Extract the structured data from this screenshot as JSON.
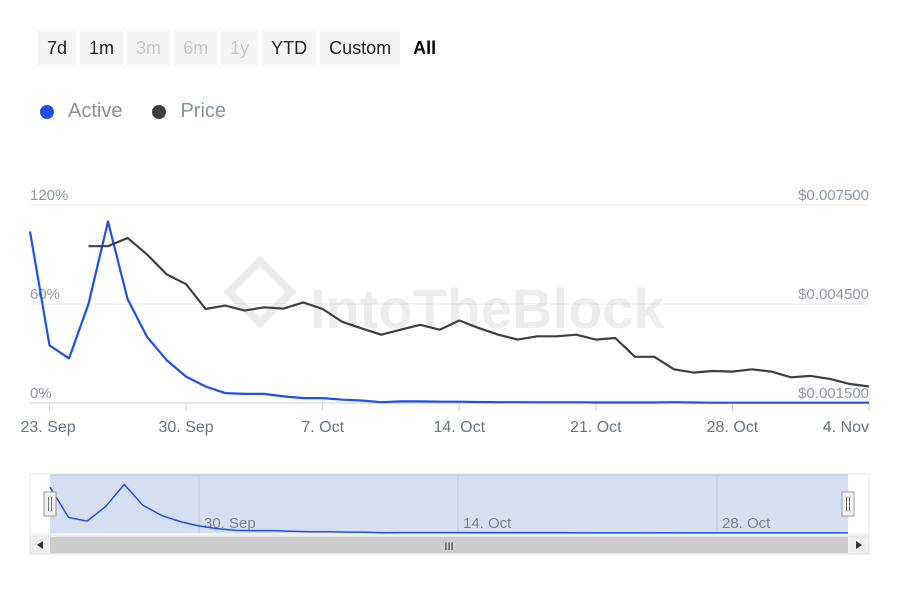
{
  "range_selector": {
    "buttons": [
      {
        "label": "7d",
        "state": "enabled"
      },
      {
        "label": "1m",
        "state": "enabled"
      },
      {
        "label": "3m",
        "state": "disabled"
      },
      {
        "label": "6m",
        "state": "disabled"
      },
      {
        "label": "1y",
        "state": "disabled"
      },
      {
        "label": "YTD",
        "state": "enabled"
      },
      {
        "label": "Custom",
        "state": "enabled"
      },
      {
        "label": "All",
        "state": "selected"
      }
    ]
  },
  "legend": {
    "items": [
      {
        "label": "Active",
        "color": "#1e4ff0"
      },
      {
        "label": "Price",
        "color": "#3d4043"
      }
    ]
  },
  "watermark": "IntoTheBlock",
  "navigator": {
    "labels": [
      "30. Sep",
      "14. Oct",
      "28. Oct"
    ],
    "scrollbar_grip": "III"
  },
  "chart_data": {
    "type": "line",
    "x_start": "2023-09-22",
    "x_end": "2023-11-04",
    "x_tick_labels": [
      {
        "label": "23. Sep",
        "date": "2023-09-23"
      },
      {
        "label": "30. Sep",
        "date": "2023-09-30"
      },
      {
        "label": "7. Oct",
        "date": "2023-10-07"
      },
      {
        "label": "14. Oct",
        "date": "2023-10-14"
      },
      {
        "label": "21. Oct",
        "date": "2023-10-21"
      },
      {
        "label": "28. Oct",
        "date": "2023-10-28"
      },
      {
        "label": "4. Nov",
        "date": "2023-11-04"
      }
    ],
    "y_left": {
      "ticks": [
        "0%",
        "60%",
        "120%"
      ],
      "ylim": [
        0,
        120
      ]
    },
    "y_right": {
      "ticks": [
        "$0.001500",
        "$0.004500",
        "$0.007500"
      ],
      "ylim": [
        0.0015,
        0.0075
      ]
    },
    "grid": true,
    "legend_position": "top-left",
    "series": [
      {
        "name": "Active",
        "axis": "left",
        "color": "#1e4ff0",
        "x": [
          "2023-09-22",
          "2023-09-23",
          "2023-09-24",
          "2023-09-25",
          "2023-09-26",
          "2023-09-27",
          "2023-09-28",
          "2023-09-29",
          "2023-09-30",
          "2023-10-01",
          "2023-10-02",
          "2023-10-03",
          "2023-10-04",
          "2023-10-05",
          "2023-10-06",
          "2023-10-07",
          "2023-10-08",
          "2023-10-09",
          "2023-10-10",
          "2023-10-11",
          "2023-10-12",
          "2023-10-13",
          "2023-10-14",
          "2023-10-15",
          "2023-10-16",
          "2023-10-17",
          "2023-10-18",
          "2023-10-19",
          "2023-10-20",
          "2023-10-21",
          "2023-10-22",
          "2023-10-23",
          "2023-10-24",
          "2023-10-25",
          "2023-10-26",
          "2023-10-27",
          "2023-10-28",
          "2023-10-29",
          "2023-10-30",
          "2023-10-31",
          "2023-11-01",
          "2023-11-02",
          "2023-11-03",
          "2023-11-04"
        ],
        "values": [
          104,
          35,
          27,
          60,
          110,
          63,
          40,
          26,
          16,
          10,
          6,
          5.5,
          5.5,
          4,
          3,
          3,
          2,
          1.5,
          0.5,
          1,
          1,
          0.8,
          0.8,
          0.6,
          0.5,
          0.5,
          0.4,
          0.4,
          0.4,
          0.3,
          0.3,
          0.3,
          0.3,
          0.5,
          0.3,
          0.2,
          0.2,
          0.2,
          0.2,
          0.2,
          0.2,
          0.2,
          0.2,
          0.2
        ]
      },
      {
        "name": "Price",
        "axis": "right",
        "color": "#3d4043",
        "x": [
          "2023-09-25",
          "2023-09-26",
          "2023-09-27",
          "2023-09-28",
          "2023-09-29",
          "2023-09-30",
          "2023-10-01",
          "2023-10-02",
          "2023-10-03",
          "2023-10-04",
          "2023-10-05",
          "2023-10-06",
          "2023-10-07",
          "2023-10-08",
          "2023-10-09",
          "2023-10-10",
          "2023-10-11",
          "2023-10-12",
          "2023-10-13",
          "2023-10-14",
          "2023-10-15",
          "2023-10-16",
          "2023-10-17",
          "2023-10-18",
          "2023-10-19",
          "2023-10-20",
          "2023-10-21",
          "2023-10-22",
          "2023-10-23",
          "2023-10-24",
          "2023-10-25",
          "2023-10-26",
          "2023-10-27",
          "2023-10-28",
          "2023-10-29",
          "2023-10-30",
          "2023-10-31",
          "2023-11-01",
          "2023-11-02",
          "2023-11-03",
          "2023-11-04"
        ],
        "values": [
          0.00625,
          0.00625,
          0.0065,
          0.006,
          0.0054,
          0.0051,
          0.00435,
          0.00445,
          0.0043,
          0.0044,
          0.00436,
          0.00455,
          0.00435,
          0.00396,
          0.00376,
          0.00357,
          0.00372,
          0.00387,
          0.00372,
          0.004,
          0.00377,
          0.00357,
          0.00342,
          0.00352,
          0.00352,
          0.00357,
          0.00342,
          0.00347,
          0.0029,
          0.0029,
          0.00252,
          0.00242,
          0.00247,
          0.00245,
          0.00252,
          0.00245,
          0.00228,
          0.00232,
          0.00223,
          0.00208,
          0.002
        ]
      }
    ]
  }
}
